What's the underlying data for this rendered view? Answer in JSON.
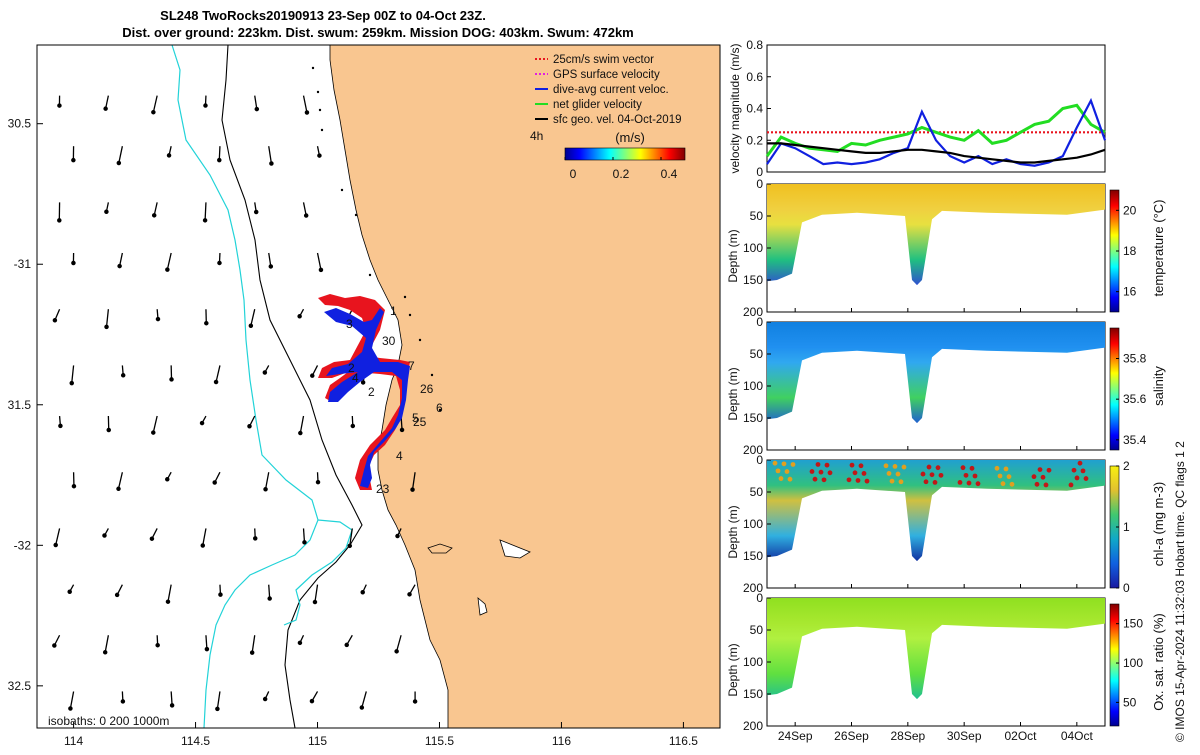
{
  "title": {
    "line1": "SL248 TwoRocks20190913 23-Sep 00Z to 04-Oct 23Z.",
    "line2": "Dist. over ground: 223km. Dist. swum: 259km. Mission DOG: 403km. Swum: 472km"
  },
  "colors": {
    "land": "#f9c690",
    "coast": "#000000",
    "isobath_0": "#000000",
    "isobath_200": "#000000",
    "isobath_1000": "#22d3d8",
    "track_red": "#e8141e",
    "track_blue": "#1020e0",
    "net_green": "#22dd22",
    "sfc_black": "#000000"
  },
  "chart_data": [
    {
      "type": "scatter",
      "panel": "map",
      "xlim": [
        113.85,
        116.65
      ],
      "ylim": [
        -32.65,
        -30.22
      ],
      "xticks": [
        114,
        114.5,
        115,
        115.5,
        116,
        116.5
      ],
      "xtick_labels": [
        "114",
        "114.5",
        "115",
        "115.5",
        "116",
        "116.5"
      ],
      "yticks": [
        -30.5,
        -31,
        -31.5,
        -32,
        -32.5
      ],
      "ytick_labels": [
        "30.5",
        "-31",
        "31.5",
        "-32",
        "32.5"
      ],
      "isobath_note": "isobaths: 0   200  1000m",
      "legend": {
        "placement": "top-right",
        "items": [
          {
            "label": "25cm/s swim vector",
            "color": "#e8141e"
          },
          {
            "label": "GPS surface velocity",
            "color": "#e020e0"
          },
          {
            "label": "dive-avg current veloc.",
            "color": "#1020e0"
          },
          {
            "label": "net glider velocity",
            "color": "#22dd22"
          },
          {
            "label": "sfc geo. vel. 04-Oct-2019",
            "color": "#000000"
          }
        ],
        "scale_label": "4h"
      },
      "colorbar": {
        "title": "(m/s)",
        "ticks": [
          0,
          0.2,
          0.4
        ],
        "tick_labels": [
          "0",
          "0.2",
          "0.4"
        ],
        "range": [
          0,
          0.5
        ]
      },
      "day_labels": [
        {
          "text": "1",
          "lon": 115.33,
          "lat": -31.17
        },
        {
          "text": "3",
          "lon": 115.15,
          "lat": -31.21
        },
        {
          "text": "30",
          "lon": 115.32,
          "lat": -31.28
        },
        {
          "text": "2",
          "lon": 115.16,
          "lat": -31.37
        },
        {
          "text": "4",
          "lon": 115.28,
          "lat": -31.41
        },
        {
          "text": "7",
          "lon": 115.4,
          "lat": -31.37
        },
        {
          "text": "2",
          "lon": 115.23,
          "lat": -31.46
        },
        {
          "text": "26",
          "lon": 115.46,
          "lat": -31.44
        },
        {
          "text": "6",
          "lon": 115.51,
          "lat": -31.51
        },
        {
          "text": "5",
          "lon": 115.41,
          "lat": -31.56
        },
        {
          "text": "25",
          "lon": 115.44,
          "lat": -31.57
        },
        {
          "text": "4",
          "lon": 115.37,
          "lat": -31.7
        },
        {
          "text": "23",
          "lon": 115.28,
          "lat": -31.79
        }
      ],
      "track": [
        [
          115.25,
          -31.12
        ],
        [
          115.22,
          -31.14
        ],
        [
          115.2,
          -31.2
        ],
        [
          115.18,
          -31.26
        ],
        [
          115.14,
          -31.3
        ],
        [
          115.1,
          -31.32
        ],
        [
          115.17,
          -31.38
        ],
        [
          115.22,
          -31.38
        ],
        [
          115.26,
          -31.38
        ],
        [
          115.35,
          -31.36
        ],
        [
          115.36,
          -31.46
        ],
        [
          115.31,
          -31.55
        ],
        [
          115.24,
          -31.6
        ],
        [
          115.18,
          -31.64
        ],
        [
          115.22,
          -31.74
        ],
        [
          115.2,
          -31.79
        ]
      ]
    },
    {
      "type": "line",
      "panel": "velocity",
      "ylabel": "velocity magnitude (m/s)",
      "ylim": [
        0,
        0.8
      ],
      "yticks": [
        0,
        0.2,
        0.4,
        0.6,
        0.8
      ],
      "ytick_labels": [
        "0",
        "0.2",
        "0.4",
        "0.6",
        "0.8"
      ],
      "xlim": [
        0,
        12
      ],
      "x": [
        0,
        0.5,
        1,
        1.5,
        2,
        2.5,
        3,
        3.5,
        4,
        4.5,
        5,
        5.5,
        6,
        6.5,
        7,
        7.5,
        8,
        8.5,
        9,
        9.5,
        10,
        10.5,
        11,
        11.5,
        12
      ],
      "series": [
        {
          "name": "25cm/s swim vector",
          "color": "#e8141e",
          "dashed": true,
          "values": [
            0.25,
            0.25,
            0.25,
            0.25,
            0.25,
            0.25,
            0.25,
            0.25,
            0.25,
            0.25,
            0.25,
            0.25,
            0.25,
            0.25,
            0.25,
            0.25,
            0.25,
            0.25,
            0.25,
            0.25,
            0.25,
            0.25,
            0.25,
            0.25,
            0.25
          ]
        },
        {
          "name": "net glider velocity",
          "color": "#22dd22",
          "values": [
            0.1,
            0.22,
            0.18,
            0.15,
            0.14,
            0.13,
            0.18,
            0.17,
            0.2,
            0.22,
            0.24,
            0.28,
            0.25,
            0.22,
            0.2,
            0.26,
            0.18,
            0.2,
            0.25,
            0.3,
            0.32,
            0.4,
            0.42,
            0.3,
            0.25
          ]
        },
        {
          "name": "dive-avg current veloc.",
          "color": "#1020e0",
          "values": [
            0.05,
            0.18,
            0.15,
            0.1,
            0.05,
            0.06,
            0.05,
            0.06,
            0.08,
            0.12,
            0.15,
            0.38,
            0.2,
            0.1,
            0.06,
            0.1,
            0.05,
            0.08,
            0.05,
            0.04,
            0.06,
            0.1,
            0.28,
            0.45,
            0.2
          ]
        },
        {
          "name": "sfc geo. vel.",
          "color": "#000000",
          "values": [
            0.18,
            0.18,
            0.17,
            0.16,
            0.15,
            0.14,
            0.13,
            0.12,
            0.12,
            0.13,
            0.14,
            0.14,
            0.13,
            0.12,
            0.1,
            0.09,
            0.08,
            0.07,
            0.06,
            0.06,
            0.07,
            0.08,
            0.09,
            0.11,
            0.14
          ]
        }
      ]
    },
    {
      "type": "heatmap",
      "panel": "temperature",
      "ylabel": "Depth (m)",
      "cbar_label": "temperature (°C)",
      "cbar_ticks": [
        16,
        18,
        20
      ],
      "cbar_range": [
        15,
        21
      ],
      "ylim": [
        200,
        0
      ],
      "yticks": [
        0,
        50,
        100,
        150,
        200
      ],
      "ytick_labels": [
        "0",
        "50",
        "100",
        "150",
        "200"
      ]
    },
    {
      "type": "heatmap",
      "panel": "salinity",
      "ylabel": "Depth (m)",
      "cbar_label": "salinity",
      "cbar_ticks": [
        35.4,
        35.6,
        35.8
      ],
      "cbar_tick_labels": [
        "35.4",
        "35.6",
        "35.8"
      ],
      "cbar_range": [
        35.35,
        35.95
      ],
      "ylim": [
        200,
        0
      ],
      "yticks": [
        0,
        50,
        100,
        150,
        200
      ],
      "ytick_labels": [
        "0",
        "50",
        "100",
        "150",
        "200"
      ]
    },
    {
      "type": "heatmap",
      "panel": "chlorophyll",
      "ylabel": "Depth (m)",
      "cbar_label": "chl-a (mg m-3)",
      "cbar_ticks": [
        0,
        1,
        2
      ],
      "cbar_range": [
        0,
        2
      ],
      "ylim": [
        200,
        0
      ],
      "yticks": [
        0,
        50,
        100,
        150,
        200
      ],
      "ytick_labels": [
        "0",
        "50",
        "100",
        "150",
        "200"
      ]
    },
    {
      "type": "heatmap",
      "panel": "oxygen",
      "ylabel": "Depth (m)",
      "cbar_label": "Ox. sat. ratio (%)",
      "cbar_ticks": [
        50,
        100,
        150
      ],
      "cbar_range": [
        20,
        175
      ],
      "ylim": [
        200,
        0
      ],
      "yticks": [
        0,
        50,
        100,
        150,
        200
      ],
      "ytick_labels": [
        "0",
        "50",
        "100",
        "150",
        "200"
      ],
      "xtick_labels": [
        "24Sep",
        "26Sep",
        "28Sep",
        "30Sep",
        "02Oct",
        "04Oct"
      ]
    }
  ],
  "footer": "© IMOS 15-Apr-2024 11:32:03 Hobart time. QC flags 1  2"
}
